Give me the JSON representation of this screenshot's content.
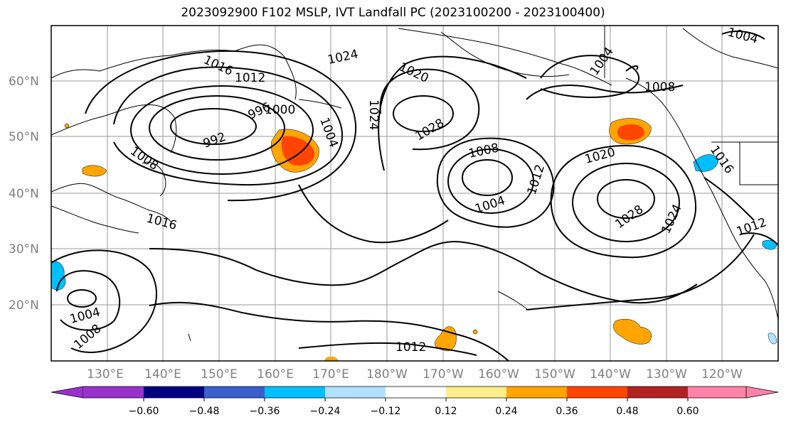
{
  "title": "2023092900 F102 MSLP, IVT Landfall PC (2023100200 - 2023100400)",
  "lat_labels": [
    "60°N",
    "50°N",
    "40°N",
    "30°N",
    "20°N"
  ],
  "lon_labels": [
    "130°E",
    "140°E",
    "150°E",
    "160°E",
    "170°E",
    "180°W",
    "170°W",
    "160°W",
    "150°W",
    "140°W",
    "130°W",
    "120°W"
  ],
  "isobar_labels": [
    "1016",
    "1012",
    "1024",
    "1020",
    "1004",
    "1004",
    "996",
    "1000",
    "1004",
    "992",
    "1024",
    "1028",
    "1008",
    "1008",
    "1016",
    "1008",
    "1004",
    "1012",
    "1020",
    "1028",
    "1024",
    "1016",
    "1012",
    "1004",
    "1008",
    "1012"
  ],
  "colorbar": {
    "ticks": [
      "−0.60",
      "−0.48",
      "−0.36",
      "−0.24",
      "−0.12",
      "0.12",
      "0.24",
      "0.36",
      "0.48",
      "0.60"
    ],
    "colors": [
      "#9932cc",
      "#000080",
      "#3a5fcd",
      "#00bfff",
      "#b0e2ff",
      "#ffffff",
      "#ffec8b",
      "#ffa500",
      "#ff4500",
      "#b22222",
      "#ff82ab"
    ]
  }
}
